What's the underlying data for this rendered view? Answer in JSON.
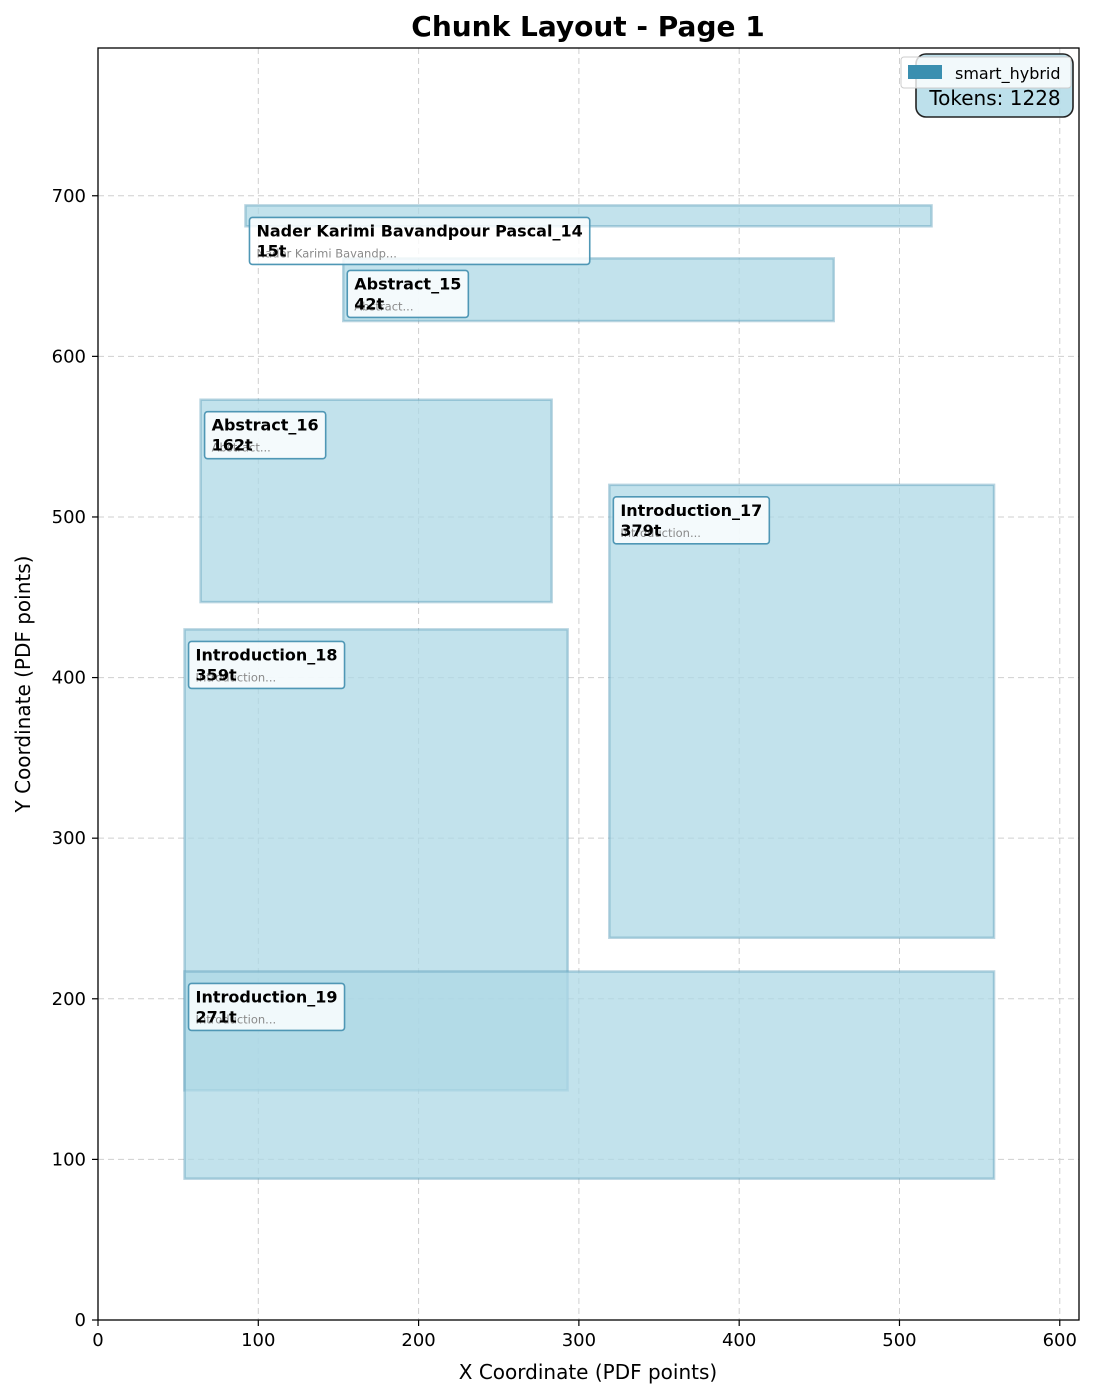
{
  "chart_data": {
    "type": "layout",
    "title": "Chunk Layout - Page 1",
    "xlabel": "X Coordinate (PDF points)",
    "ylabel": "Y Coordinate (PDF points)",
    "xlim": [
      0,
      612
    ],
    "ylim": [
      0,
      792
    ],
    "xticks": [
      0,
      100,
      200,
      300,
      400,
      500,
      600
    ],
    "yticks": [
      0,
      100,
      200,
      300,
      400,
      500,
      600,
      700
    ],
    "grid": true,
    "legend": {
      "placement": "top-right",
      "entries": [
        {
          "label": "smart_hybrid",
          "color": "#3a8fb0"
        }
      ]
    },
    "total_tokens_label": "Tokens: 1228",
    "fill_color": "#add8e6",
    "edge_color": "#4f97b5",
    "chunks": [
      {
        "name": "Nader Karimi Bavandpour Pascal_14",
        "tokens": "15t",
        "preview": "Nader Karimi Bavandp...",
        "x0": 92,
        "y0": 681,
        "x1": 520,
        "y1": 694
      },
      {
        "name": "Abstract_15",
        "tokens": "42t",
        "preview": "Abstract...",
        "x0": 153,
        "y0": 622,
        "x1": 459,
        "y1": 661
      },
      {
        "name": "Abstract_16",
        "tokens": "162t",
        "preview": "Abstract...",
        "x0": 64,
        "y0": 447,
        "x1": 283,
        "y1": 573
      },
      {
        "name": "Introduction_17",
        "tokens": "379t",
        "preview": "Introduction...",
        "x0": 319,
        "y0": 238,
        "x1": 559,
        "y1": 520
      },
      {
        "name": "Introduction_18",
        "tokens": "359t",
        "preview": "Introduction...",
        "x0": 54,
        "y0": 143,
        "x1": 293,
        "y1": 430
      },
      {
        "name": "Introduction_19",
        "tokens": "271t",
        "preview": "Introduction...",
        "x0": 54,
        "y0": 88,
        "x1": 559,
        "y1": 217
      }
    ]
  }
}
